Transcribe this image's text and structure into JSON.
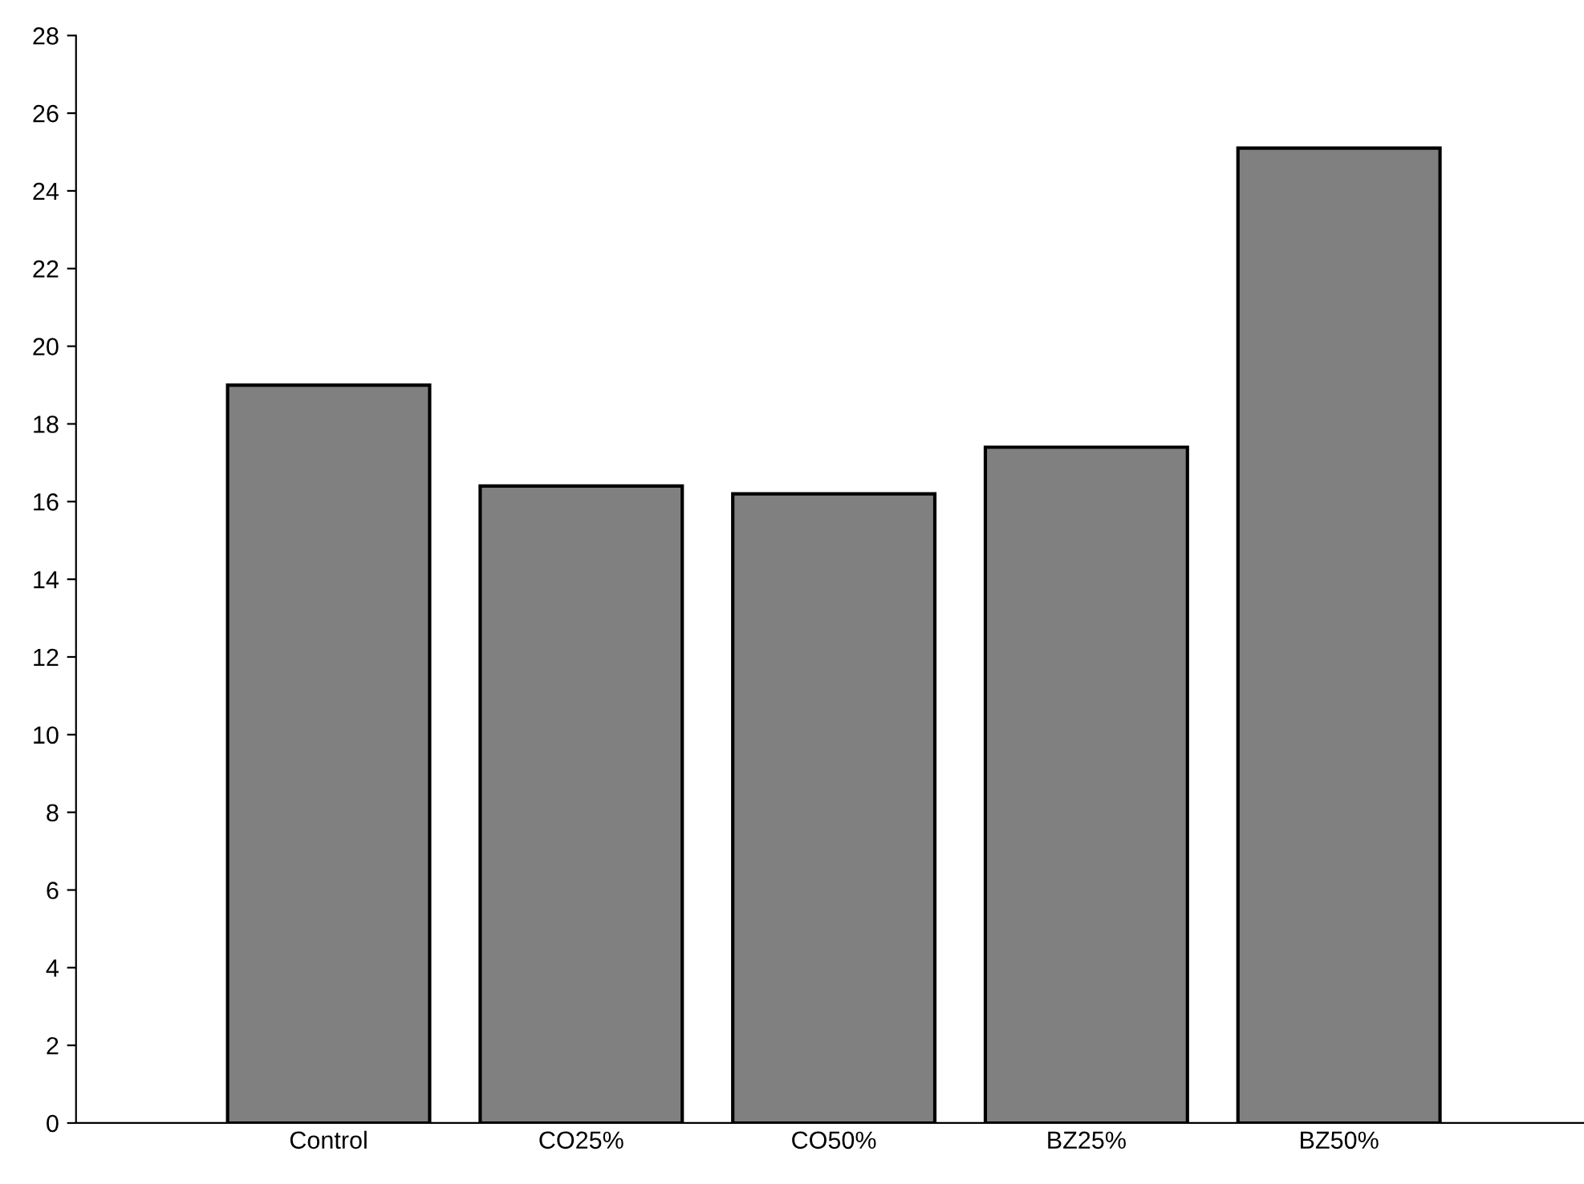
{
  "chart_data": {
    "type": "bar",
    "categories": [
      "Control",
      "CO25%",
      "CO50%",
      "BZ25%",
      "BZ50%"
    ],
    "values": [
      19.0,
      16.4,
      16.2,
      17.4,
      25.1
    ],
    "color": "#808080",
    "ylim": [
      0,
      28
    ],
    "yticks": [
      0,
      2,
      4,
      6,
      8,
      10,
      12,
      14,
      16,
      18,
      20,
      22,
      24,
      26,
      28
    ],
    "grid": false,
    "legend": false
  }
}
